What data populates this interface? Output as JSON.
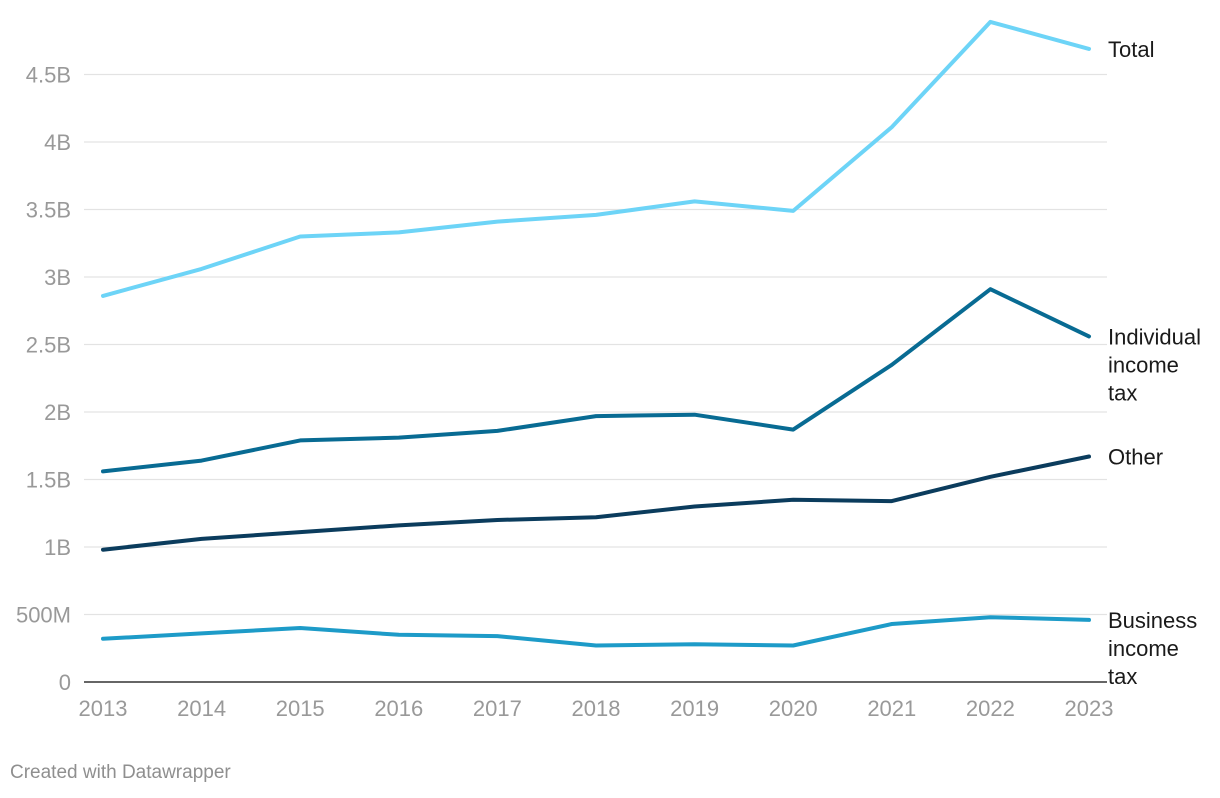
{
  "credit": "Created with Datawrapper",
  "chart_data": {
    "type": "line",
    "x": [
      2013,
      2014,
      2015,
      2016,
      2017,
      2018,
      2019,
      2020,
      2021,
      2022,
      2023
    ],
    "ylim": [
      0,
      5000000000
    ],
    "yticks": [
      {
        "value": 0,
        "label": "0"
      },
      {
        "value": 500000000,
        "label": "500M"
      },
      {
        "value": 1000000000,
        "label": "1B"
      },
      {
        "value": 1500000000,
        "label": "1.5B"
      },
      {
        "value": 2000000000,
        "label": "2B"
      },
      {
        "value": 2500000000,
        "label": "2.5B"
      },
      {
        "value": 3000000000,
        "label": "3B"
      },
      {
        "value": 3500000000,
        "label": "3.5B"
      },
      {
        "value": 4000000000,
        "label": "4B"
      },
      {
        "value": 4500000000,
        "label": "4.5B"
      }
    ],
    "grid": true,
    "legend": "direct labels at line ends (right)",
    "series": [
      {
        "name": "Total",
        "label_lines": [
          "Total"
        ],
        "color": "#6dd4f7",
        "values": [
          2860000000,
          3060000000,
          3300000000,
          3330000000,
          3410000000,
          3460000000,
          3560000000,
          3490000000,
          4110000000,
          4890000000,
          4690000000
        ]
      },
      {
        "name": "Individual income tax",
        "label_lines": [
          "Individual",
          "income",
          "tax"
        ],
        "color": "#086b93",
        "values": [
          1560000000,
          1640000000,
          1790000000,
          1810000000,
          1860000000,
          1970000000,
          1980000000,
          1870000000,
          2350000000,
          2910000000,
          2560000000
        ]
      },
      {
        "name": "Other",
        "label_lines": [
          "Other"
        ],
        "color": "#0b3c5d",
        "values": [
          980000000,
          1060000000,
          1110000000,
          1160000000,
          1200000000,
          1220000000,
          1300000000,
          1350000000,
          1340000000,
          1520000000,
          1670000000
        ]
      },
      {
        "name": "Business income tax",
        "label_lines": [
          "Business",
          "income",
          "tax"
        ],
        "color": "#1d9bc8",
        "values": [
          320000000,
          360000000,
          400000000,
          350000000,
          340000000,
          270000000,
          280000000,
          270000000,
          430000000,
          480000000,
          460000000
        ]
      }
    ]
  }
}
